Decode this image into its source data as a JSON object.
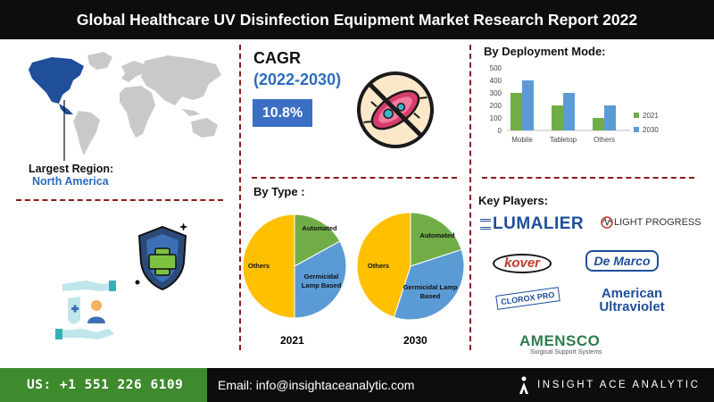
{
  "title": "Global Healthcare UV Disinfection Equipment Market Research Report 2022",
  "region": {
    "label": "Largest Region:",
    "value": "North America"
  },
  "cagr": {
    "title": "CAGR",
    "years": "(2022-2030)",
    "value": "10.8%"
  },
  "by_type": {
    "heading": "By Type :",
    "labels_2021": [
      "Automated",
      "Germicidal Lamp Based",
      "Others"
    ],
    "labels_2030": [
      "Automated",
      "Germicidal Lamp Based",
      "Others"
    ],
    "year_2021": "2021",
    "year_2030": "2030"
  },
  "by_deployment": {
    "heading": "By Deployment Mode:"
  },
  "key_players": {
    "heading": "Key Players:",
    "logos": [
      "LUMALIER",
      "LIGHT PROGRESS",
      "kover",
      "De Marco",
      "CLOROX PRO",
      "American Ultraviolet",
      "AMENSCO",
      "Surgical Support Systems"
    ]
  },
  "footer": {
    "phone": "US: +1 551 226 6109",
    "email": "Email: info@insightaceanalytic.com",
    "brand": "INSIGHT ACE ANALYTIC"
  },
  "colors": {
    "green": "#70ad47",
    "blue": "#5b9bd5",
    "yellow": "#ffc000",
    "accent_blue": "#2e6dbc",
    "dash_red": "#8b1a1a"
  },
  "chart_data": [
    {
      "type": "bar",
      "title": "By Deployment Mode:",
      "categories": [
        "Mobile",
        "Tabletop",
        "Others"
      ],
      "series": [
        {
          "name": "2021",
          "values": [
            300,
            200,
            100
          ],
          "color": "#70ad47"
        },
        {
          "name": "2030",
          "values": [
            400,
            300,
            200
          ],
          "color": "#5b9bd5"
        }
      ],
      "ylim": [
        0,
        500
      ],
      "yticks": [
        "0",
        "100",
        "200",
        "300",
        "400",
        "500"
      ],
      "legend": "right",
      "grid": false
    },
    {
      "type": "pie",
      "title": "2021",
      "slices": [
        {
          "label": "Automated",
          "value": 17,
          "color": "#70ad47"
        },
        {
          "label": "Germicidal Lamp Based",
          "value": 33,
          "color": "#5b9bd5"
        },
        {
          "label": "Others",
          "value": 50,
          "color": "#ffc000"
        }
      ]
    },
    {
      "type": "pie",
      "title": "2030",
      "slices": [
        {
          "label": "Automated",
          "value": 20,
          "color": "#70ad47"
        },
        {
          "label": "Germicidal Lamp Based",
          "value": 35,
          "color": "#5b9bd5"
        },
        {
          "label": "Others",
          "value": 45,
          "color": "#ffc000"
        }
      ]
    }
  ]
}
